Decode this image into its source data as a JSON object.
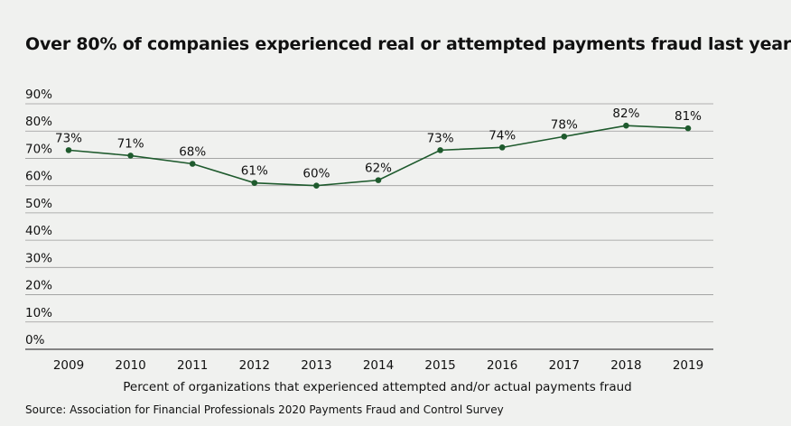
{
  "chart_data": {
    "type": "line",
    "title": "Over 80% of companies experienced real or attempted payments fraud last year",
    "xlabel": "Percent of organizations that experienced attempted and/or actual payments fraud",
    "ylabel": "",
    "source": "Source: Association for Financial Professionals 2020 Payments Fraud and Control Survey",
    "categories": [
      "2009",
      "2010",
      "2011",
      "2012",
      "2013",
      "2014",
      "2015",
      "2016",
      "2017",
      "2018",
      "2019"
    ],
    "series": [
      {
        "values": [
          73,
          71,
          68,
          61,
          60,
          62,
          73,
          74,
          78,
          82,
          81
        ],
        "labels": [
          "73%",
          "71%",
          "68%",
          "61%",
          "60%",
          "62%",
          "73%",
          "74%",
          "78%",
          "82%",
          "81%"
        ]
      }
    ],
    "ylim": [
      0,
      90
    ],
    "yticks": [
      0,
      10,
      20,
      30,
      40,
      50,
      60,
      70,
      80,
      90
    ],
    "ytick_labels": [
      "0%",
      "10%",
      "20%",
      "30%",
      "40%",
      "50%",
      "60%",
      "70%",
      "80%",
      "90%"
    ],
    "grid": true,
    "colors": {
      "line": "#1e5a2d",
      "grid": "#9a9a9a",
      "background": "#f0f1ef"
    }
  }
}
